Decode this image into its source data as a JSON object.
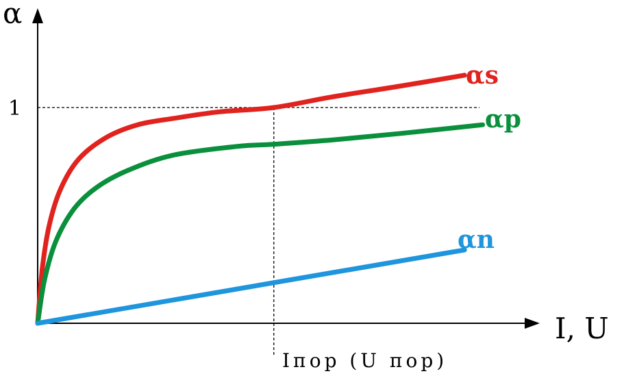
{
  "chart_data": {
    "type": "line",
    "title": "",
    "ylabel": "α",
    "xlabel": "I, U",
    "xlim": [
      0,
      10
    ],
    "ylim": [
      0,
      1.5
    ],
    "grid": false,
    "legend": "none",
    "y_tick": {
      "value": 1,
      "label": "1"
    },
    "x_marker": {
      "value": 5.2,
      "label": "Iпор (U пор)"
    },
    "series": [
      {
        "name": "αs",
        "color": "#e0231e",
        "points": [
          [
            0,
            0
          ],
          [
            0.1,
            0.25
          ],
          [
            0.25,
            0.45
          ],
          [
            0.5,
            0.62
          ],
          [
            0.9,
            0.76
          ],
          [
            1.5,
            0.86
          ],
          [
            2.2,
            0.92
          ],
          [
            3,
            0.95
          ],
          [
            4,
            0.98
          ],
          [
            5.2,
            1.0
          ],
          [
            6.5,
            1.05
          ],
          [
            8,
            1.1
          ],
          [
            9.4,
            1.15
          ]
        ]
      },
      {
        "name": "αp",
        "color": "#0a8f3c",
        "points": [
          [
            0,
            0
          ],
          [
            0.15,
            0.2
          ],
          [
            0.4,
            0.38
          ],
          [
            0.8,
            0.53
          ],
          [
            1.3,
            0.63
          ],
          [
            2,
            0.71
          ],
          [
            3,
            0.78
          ],
          [
            4.4,
            0.82
          ],
          [
            5.2,
            0.83
          ],
          [
            6.5,
            0.85
          ],
          [
            8,
            0.88
          ],
          [
            9.8,
            0.92
          ]
        ]
      },
      {
        "name": "αn",
        "color": "#1e95dc",
        "points": [
          [
            0,
            0
          ],
          [
            9.4,
            0.34
          ]
        ]
      }
    ]
  }
}
